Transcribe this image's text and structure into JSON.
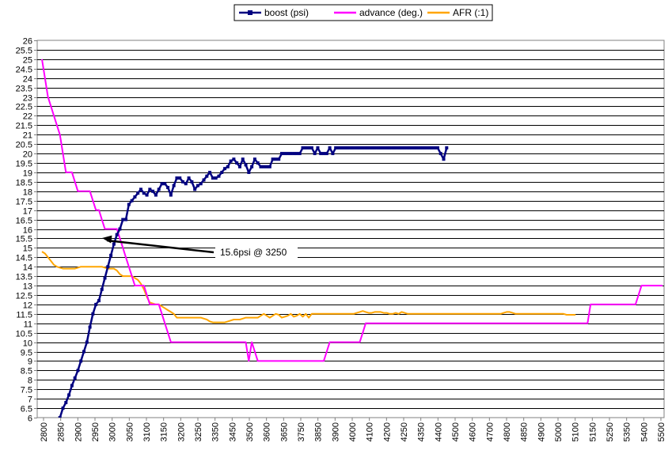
{
  "chart_data": {
    "type": "line",
    "title": "",
    "xlabel": "",
    "ylabel": "",
    "ylim": [
      6,
      26
    ],
    "ytick_step": 0.5,
    "grid": "horizontal",
    "legend_position": "top-center",
    "x_tick_labels": [
      "2800",
      "2850",
      "2900",
      "2950",
      "3000",
      "3050",
      "3100",
      "3150",
      "3200",
      "3250",
      "3350",
      "3450",
      "3500",
      "3600",
      "3650",
      "3750",
      "3850",
      "3900",
      "4000",
      "4100",
      "4200",
      "4250",
      "4350",
      "4400",
      "4500",
      "4600",
      "4700",
      "4800",
      "4850",
      "4900",
      "5000",
      "5100",
      "5150",
      "5250",
      "5350",
      "5400",
      "5500"
    ],
    "series": [
      {
        "name": "boost (psi)",
        "color": "#000080",
        "marker": "square",
        "start_index": 6,
        "values": [
          6,
          6.5,
          6.8,
          7.2,
          7.7,
          8.1,
          8.5,
          9,
          9.5,
          10,
          10.8,
          11.5,
          12,
          12.2,
          12.8,
          13.4,
          14,
          14.6,
          15.2,
          15.7,
          16,
          16.5,
          16.5,
          17.3,
          17.5,
          17.7,
          17.9,
          18.1,
          17.9,
          17.8,
          18.1,
          18,
          17.8,
          18.1,
          18.4,
          18.4,
          18.2,
          17.8,
          18.3,
          18.7,
          18.7,
          18.5,
          18.4,
          18.7,
          18.5,
          18.1,
          18.3,
          18.4,
          18.6,
          18.8,
          19,
          18.7,
          18.7,
          18.8,
          19,
          19.2,
          19.3,
          19.6,
          19.7,
          19.5,
          19.3,
          19.7,
          19.4,
          19,
          19.3,
          19.7,
          19.5,
          19.3,
          19.3,
          19.3,
          19.3,
          19.7,
          19.7,
          19.7,
          20,
          20,
          20,
          20,
          20,
          20,
          20,
          20.3,
          20.3,
          20.3,
          20.3,
          20,
          20.3,
          20,
          20,
          20,
          20.3,
          20,
          20.3,
          20.3,
          20.3,
          20.3,
          20.3,
          20.3,
          20.3,
          20.3,
          20.3,
          20.3,
          20.3,
          20.3,
          20.3,
          20.3,
          20.3,
          20.3,
          20.3,
          20.3,
          20.3,
          20.3,
          20.3,
          20.3,
          20.3,
          20.3,
          20.3,
          20.3,
          20.3,
          20.3,
          20.3,
          20.3,
          20.3,
          20.3,
          20.3,
          20.3,
          20.3,
          20,
          19.7,
          20.3
        ]
      },
      {
        "name": "advance (deg.)",
        "color": "#ff00ff",
        "marker": "none",
        "start_index": 0,
        "values": [
          25,
          24,
          23,
          22.5,
          22,
          21.5,
          21,
          20,
          19,
          19,
          19,
          18.5,
          18,
          18,
          18,
          18,
          18,
          17.5,
          17,
          17,
          16.5,
          16,
          16,
          16,
          16,
          16,
          15.5,
          15,
          14.5,
          14,
          13.5,
          13,
          13,
          13,
          13,
          12.5,
          12,
          12,
          12,
          12,
          11.5,
          11,
          10.5,
          10,
          10,
          10,
          10,
          10,
          10,
          10,
          10,
          10,
          10,
          10,
          10,
          10,
          10,
          10,
          10,
          10,
          10,
          10,
          10,
          10,
          10,
          10,
          10,
          10,
          10,
          9,
          10,
          9.5,
          9,
          9,
          9,
          9,
          9,
          9,
          9,
          9,
          9,
          9,
          9,
          9,
          9,
          9,
          9,
          9,
          9,
          9,
          9,
          9,
          9,
          9,
          9,
          9.5,
          10,
          10,
          10,
          10,
          10,
          10,
          10,
          10,
          10,
          10,
          10,
          10.5,
          11,
          11,
          11,
          11,
          11,
          11,
          11,
          11,
          11,
          11,
          11,
          11,
          11,
          11,
          11,
          11,
          11,
          11,
          11,
          11,
          11,
          11,
          11,
          11,
          11,
          11,
          11,
          11,
          11,
          11,
          11,
          11,
          11,
          11,
          11,
          11,
          11,
          11,
          11,
          11,
          11,
          11,
          11,
          11,
          11,
          11,
          11,
          11,
          11,
          11,
          11,
          11,
          11,
          11,
          11,
          11,
          11,
          11,
          11,
          11,
          11,
          11,
          11,
          11,
          11,
          11,
          11,
          11,
          11,
          11,
          11,
          11,
          11,
          11,
          11,
          12,
          12,
          12,
          12,
          12,
          12,
          12,
          12,
          12,
          12,
          12,
          12,
          12,
          12,
          12,
          12,
          12.5,
          13,
          13,
          13,
          13,
          13,
          13,
          13,
          13
        ]
      },
      {
        "name": "AFR (:1)",
        "color": "#ffa500",
        "marker": "none",
        "start_index": 0,
        "values": [
          14.8,
          14.7,
          14.5,
          14.3,
          14.1,
          14,
          13.95,
          13.9,
          13.9,
          13.9,
          13.9,
          13.9,
          13.95,
          14,
          14,
          14,
          14,
          14,
          14,
          14,
          14,
          13.95,
          13.9,
          13.9,
          13.9,
          13.8,
          13.6,
          13.5,
          13.5,
          13.5,
          13.5,
          13.4,
          13.3,
          13.1,
          12.8,
          12.4,
          12.1,
          12.05,
          12,
          12,
          11.9,
          11.8,
          11.7,
          11.6,
          11.5,
          11.3,
          11.3,
          11.3,
          11.3,
          11.3,
          11.3,
          11.3,
          11.3,
          11.3,
          11.25,
          11.2,
          11.1,
          11.05,
          11.05,
          11.05,
          11.05,
          11.05,
          11.1,
          11.15,
          11.2,
          11.2,
          11.2,
          11.25,
          11.3,
          11.3,
          11.3,
          11.3,
          11.3,
          11.4,
          11.5,
          11.4,
          11.3,
          11.4,
          11.5,
          11.45,
          11.3,
          11.35,
          11.4,
          11.5,
          11.35,
          11.4,
          11.5,
          11.35,
          11.5,
          11.3,
          11.5,
          11.5,
          11.5,
          11.5,
          11.5,
          11.5,
          11.5,
          11.5,
          11.5,
          11.5,
          11.5,
          11.5,
          11.5,
          11.5,
          11.5,
          11.55,
          11.6,
          11.65,
          11.6,
          11.55,
          11.55,
          11.6,
          11.6,
          11.6,
          11.55,
          11.55,
          11.5,
          11.5,
          11.55,
          11.5,
          11.6,
          11.55,
          11.5,
          11.5,
          11.5,
          11.5,
          11.5,
          11.5,
          11.5,
          11.5,
          11.5,
          11.5,
          11.5,
          11.5,
          11.5,
          11.5,
          11.5,
          11.5,
          11.5,
          11.5,
          11.5,
          11.5,
          11.5,
          11.5,
          11.5,
          11.5,
          11.5,
          11.5,
          11.5,
          11.5,
          11.5,
          11.5,
          11.5,
          11.5,
          11.55,
          11.6,
          11.6,
          11.55,
          11.5,
          11.5,
          11.5,
          11.5,
          11.5,
          11.5,
          11.5,
          11.5,
          11.5,
          11.5,
          11.5,
          11.5,
          11.5,
          11.5,
          11.5,
          11.5,
          11.5,
          11.45,
          11.45,
          11.45,
          11.45
        ]
      }
    ],
    "annotations": [
      {
        "text": "15.6psi @ 3250",
        "x_index": 19,
        "y": 15.6
      }
    ]
  }
}
